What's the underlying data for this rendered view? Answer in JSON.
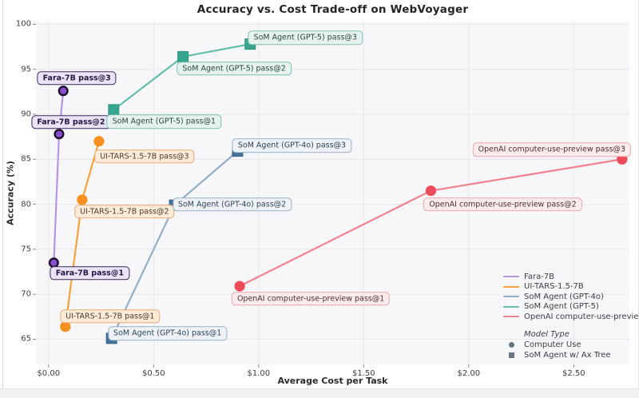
{
  "chart_data": {
    "type": "scatter",
    "title": "Accuracy vs. Cost Trade-off on WebVoyager",
    "xlabel": "Average Cost per Task",
    "ylabel": "Accuracy (%)",
    "xlim": [
      -0.06,
      2.765
    ],
    "ylim": [
      62.2,
      100.3
    ],
    "grid": true,
    "x_ticks": [
      {
        "value": 0.0,
        "label": "$0.00"
      },
      {
        "value": 0.5,
        "label": "$0.50"
      },
      {
        "value": 1.0,
        "label": "$1.00"
      },
      {
        "value": 1.5,
        "label": "$1.50"
      },
      {
        "value": 2.0,
        "label": "$2.00"
      },
      {
        "value": 2.5,
        "label": "$2.50"
      }
    ],
    "y_ticks": [
      {
        "value": 65,
        "label": "65"
      },
      {
        "value": 70,
        "label": "70"
      },
      {
        "value": 75,
        "label": "75"
      },
      {
        "value": 80,
        "label": "80"
      },
      {
        "value": 85,
        "label": "85"
      },
      {
        "value": 90,
        "label": "90"
      },
      {
        "value": 95,
        "label": "95"
      },
      {
        "value": 100,
        "label": "100"
      }
    ],
    "series": [
      {
        "name": "Fara-7B",
        "marker_type": "circle",
        "colors": {
          "line": "#b297e2",
          "marker": "#8a4fd0",
          "marker_edge": "#20122f",
          "box_bg": "#ebe4f8",
          "box_border": "#382a5a",
          "box_text": "#241743"
        },
        "bold_labels": true,
        "points": [
          {
            "cost": 0.025,
            "accuracy": 73.5,
            "label": "Fara-7B pass@1",
            "label_offset": [
              45,
              13
            ]
          },
          {
            "cost": 0.05,
            "accuracy": 87.8,
            "label": "Fara-7B pass@2",
            "label_offset": [
              15,
              -15
            ]
          },
          {
            "cost": 0.07,
            "accuracy": 92.6,
            "label": "Fara-7B pass@3",
            "label_offset": [
              17,
              -16
            ]
          }
        ]
      },
      {
        "name": "UI-TARS-1.5-7B",
        "marker_type": "circle",
        "colors": {
          "line": "#f7a13a",
          "marker": "#f78f1e",
          "marker_edge": "",
          "box_bg": "#fdebd8",
          "box_border": "#e9aa7b",
          "box_text": "#4c3a28"
        },
        "bold_labels": false,
        "points": [
          {
            "cost": 0.08,
            "accuracy": 66.4,
            "label": "UI-TARS-1.5-7B pass@1",
            "label_offset": [
              56,
              -13
            ]
          },
          {
            "cost": 0.16,
            "accuracy": 80.5,
            "label": "UI-TARS-1.5-7B pass@2",
            "label_offset": [
              53,
              15
            ]
          },
          {
            "cost": 0.24,
            "accuracy": 87.0,
            "label": "UI-TARS-1.5-7B pass@3",
            "label_offset": [
              57,
              19
            ]
          }
        ]
      },
      {
        "name": "SoM Agent (GPT-4o)",
        "marker_type": "square",
        "colors": {
          "line": "#93afc7",
          "marker": "#44749e",
          "marker_edge": "#3a6389",
          "box_bg": "#eef2f7",
          "box_border": "#93b0c6",
          "box_text": "#2e4356"
        },
        "bold_labels": false,
        "points": [
          {
            "cost": 0.3,
            "accuracy": 65.1,
            "label": "SoM Agent (GPT-4o) pass@1",
            "label_offset": [
              70,
              -6
            ]
          },
          {
            "cost": 0.6,
            "accuracy": 79.9,
            "label": "SoM Agent (GPT-4o) pass@2",
            "label_offset": [
              72,
              -1
            ]
          },
          {
            "cost": 0.9,
            "accuracy": 85.9,
            "label": "SoM Agent (GPT-4o) pass@3",
            "label_offset": [
              68,
              -7
            ]
          }
        ]
      },
      {
        "name": "SoM Agent (GPT-5)",
        "marker_type": "square",
        "colors": {
          "line": "#66bcaa",
          "marker": "#37a68f",
          "marker_edge": "#2e9480",
          "box_bg": "#e6f2ef",
          "box_border": "#7cbfb0",
          "box_text": "#29473f"
        },
        "bold_labels": false,
        "points": [
          {
            "cost": 0.31,
            "accuracy": 90.5,
            "label": "SoM Agent (GPT-5) pass@1",
            "label_offset": [
              63,
              15
            ]
          },
          {
            "cost": 0.64,
            "accuracy": 96.4,
            "label": "SoM Agent (GPT-5) pass@2",
            "label_offset": [
              64,
              15
            ]
          },
          {
            "cost": 0.96,
            "accuracy": 97.8,
            "label": "SoM Agent (GPT-5) pass@3",
            "label_offset": [
              69,
              -8
            ]
          }
        ]
      },
      {
        "name": "OpenAI computer-use-preview",
        "marker_type": "circle",
        "colors": {
          "line": "#f2818d",
          "marker": "#ee4b59",
          "marker_edge": "",
          "box_bg": "#fcecee",
          "box_border": "#eca6ad",
          "box_text": "#4e2d32"
        },
        "bold_labels": false,
        "points": [
          {
            "cost": 0.91,
            "accuracy": 70.9,
            "label": "OpenAI computer-use-preview pass@1",
            "label_offset": [
              89,
              16
            ]
          },
          {
            "cost": 1.82,
            "accuracy": 81.5,
            "label": "OpenAI computer-use-preview pass@2",
            "label_offset": [
              90,
              17
            ]
          },
          {
            "cost": 2.73,
            "accuracy": 85.0,
            "label": "OpenAI computer-use-preview pass@3",
            "label_offset": [
              -88,
              -12
            ]
          }
        ]
      }
    ],
    "legend": {
      "entries": [
        "Fara-7B",
        "UI-TARS-1.5-7B",
        "SoM Agent (GPT-4o)",
        "SoM Agent (GPT-5)",
        "OpenAI computer-use-preview"
      ],
      "position": "right-middle"
    },
    "marker_legend": {
      "title": "Model Type",
      "items": [
        {
          "marker": "circle",
          "label": "Computer Use"
        },
        {
          "marker": "square",
          "label": "SoM Agent w/ Ax Tree"
        }
      ]
    }
  }
}
